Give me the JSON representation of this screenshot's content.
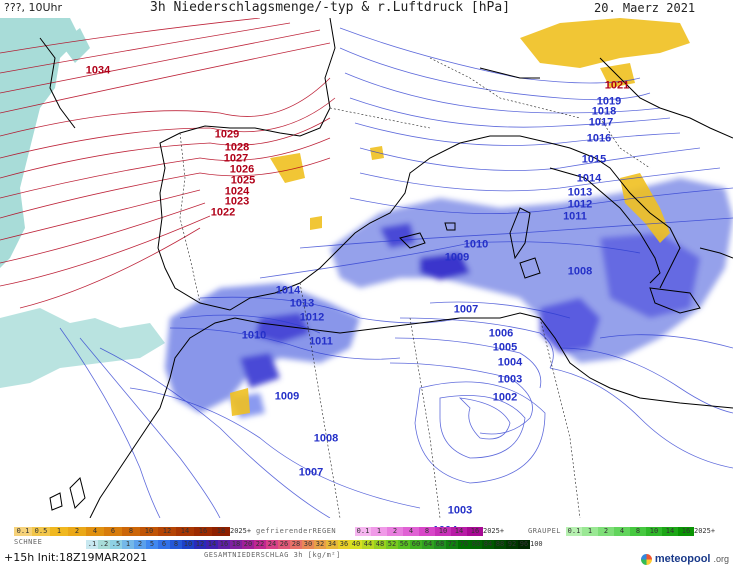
{
  "header": {
    "left": "???, 10Uhr",
    "title": "3h Niederschlagsmenge/-typ & r.Luftdruck [hPa]",
    "date": "20. Maerz 2021"
  },
  "map": {
    "isobar_labels_high": [
      "1034",
      "1029",
      "1028",
      "1027",
      "1026",
      "1025",
      "1024",
      "1023",
      "1022"
    ],
    "isobar_labels_low": [
      "1021",
      "1019",
      "1018",
      "1017",
      "1016",
      "1015",
      "1014",
      "1013",
      "1012",
      "1011",
      "1010",
      "1009",
      "1008",
      "1014",
      "1013",
      "1012",
      "1010",
      "1011",
      "1009",
      "1007",
      "1006",
      "1005",
      "1004",
      "1003",
      "1002",
      "1008",
      "1007",
      "1003",
      "1004"
    ]
  },
  "legend": {
    "snow": {
      "name": "SCHNEE",
      "values": [
        "0.1",
        "0.5",
        "1",
        "2",
        "4",
        "6",
        "8",
        "10",
        "12",
        "14",
        "16",
        "18",
        "2025+"
      ]
    },
    "freezing_rain": {
      "name": "gefrierenderREGEN",
      "values": [
        "0.1",
        "1",
        "2",
        "4",
        "8",
        "10",
        "14",
        "16",
        "2025+"
      ]
    },
    "graupel": {
      "name": "GRAUPEL",
      "values": [
        "0.1",
        "1",
        "2",
        "4",
        "8",
        "10",
        "14",
        "16",
        "2025+"
      ]
    },
    "total": {
      "name": "GESAMTNIEDERSCHLAG 3h [kg/m²]",
      "values": [
        ".1",
        ".2",
        ".5",
        "1",
        "2",
        "5",
        "6",
        "8",
        "10",
        "12",
        "14",
        "16",
        "18",
        "20",
        "22",
        "24",
        "26",
        "28",
        "30",
        "32",
        "34",
        "36",
        "40",
        "44",
        "48",
        "52",
        "56",
        "60",
        "64",
        "68",
        "72",
        "76",
        "80",
        "84",
        "88",
        "92",
        "96",
        "100"
      ]
    }
  },
  "footer": {
    "run": "+15h Init:18Z19MAR2021",
    "brand": "meteopool",
    "brand_suffix": ".org"
  },
  "colors": {
    "isobar_high": "#b3001a",
    "isobar_low": "#2a3ad0",
    "snow_area": "#a8dcd8",
    "rain_area": "#7080e0",
    "rain_core": "#3a3ad0",
    "yellow_area": "#f0c020",
    "coast": "#000000"
  }
}
